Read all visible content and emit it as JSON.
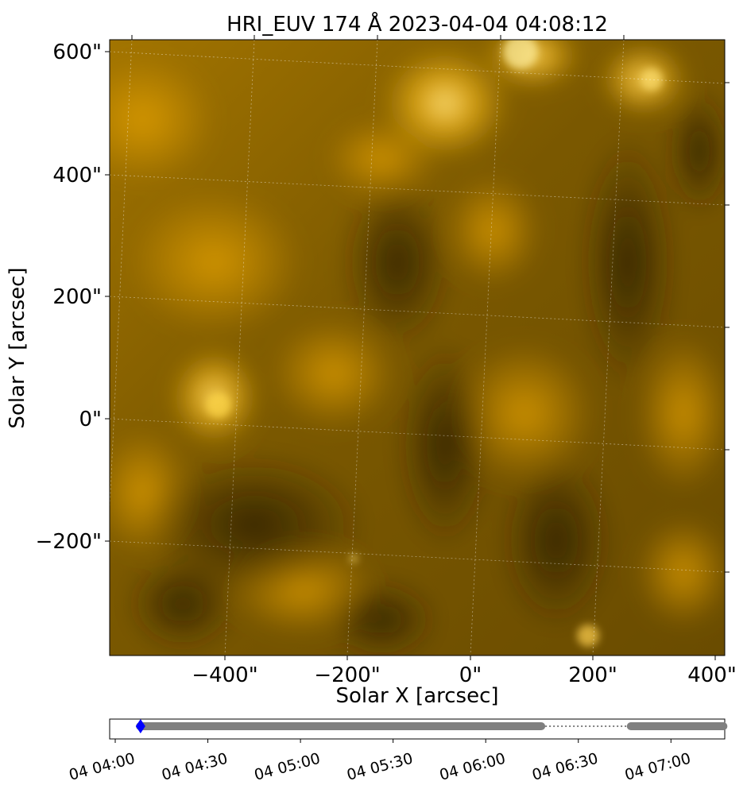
{
  "title": "HRI_EUV 174 Å 2023-04-04 04:08:12",
  "image": {
    "description_colormap": "solar-orbiter-174",
    "colors": {
      "dark": "#3a2a00",
      "mid": "#8a6400",
      "bright": "#e6a800",
      "highlight": "#ffe07a",
      "timeline_dots": "#808080",
      "current_marker": "#0000ff"
    }
  },
  "axes": {
    "xlabel": "Solar X [arcsec]",
    "ylabel": "Solar Y [arcsec]",
    "x_ticks": [
      "−400\"",
      "−200\"",
      "0\"",
      "200\"",
      "400\""
    ],
    "y_ticks": [
      "600\"",
      "400\"",
      "200\"",
      "0\"",
      "−200\""
    ]
  },
  "timeline": {
    "ticks": [
      "04 04:00",
      "04 04:30",
      "04 05:00",
      "04 05:30",
      "04 06:00",
      "04 06:30",
      "04 07:00"
    ],
    "current_time": "04:08:12",
    "coverage": [
      {
        "start": "04:08",
        "end": "06:18",
        "style": "dots"
      },
      {
        "start": "06:18",
        "end": "06:47",
        "style": "dotted-line"
      },
      {
        "start": "06:47",
        "end": "07:17",
        "style": "dots"
      }
    ]
  }
}
